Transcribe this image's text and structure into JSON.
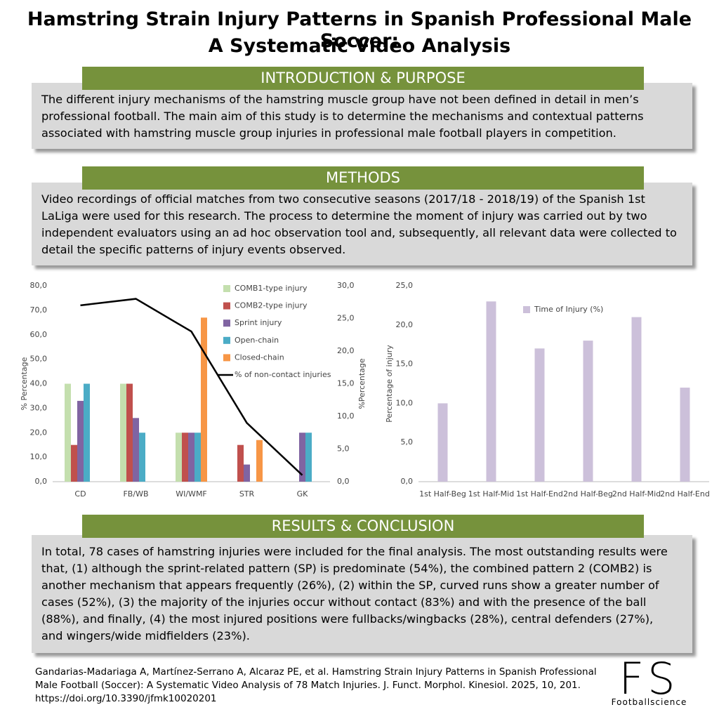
{
  "title": [
    "Hamstring Strain Injury Patterns in Spanish Professional Male Soccer:",
    "A Systematic Video Analysis"
  ],
  "sections": [
    {
      "heading": "INTRODUCTION & PURPOSE",
      "text": "The different injury mechanisms of the hamstring muscle group have not been defined in detail in men’s professional football. The main aim of this study is to determine the mechanisms and contextual patterns associated with hamstring muscle group injuries in professional male football players in competition."
    },
    {
      "heading": "METHODS",
      "text": "Video recordings of official matches from two consecutive seasons (2017/18 - 2018/19) of the Spanish 1st LaLiga were used for this research. The process to determine the moment of injury was carried out by two independent evaluators using an ad hoc observation tool and, subsequently, all relevant data were collected to detail the specific patterns of injury events observed."
    },
    {
      "heading": "RESULTS & CONCLUSION",
      "text": "In total, 78 cases of hamstring injuries were included for the final analysis. The most outstanding results  were that, (1) although the sprint-related pattern (SP) is predominate (54%), the combined pattern 2 (COMB2) is another mechanism that appears frequently (26%), (2) within the SP, curved runs show a greater number of cases (52%), (3) the majority of the injuries occur without contact (83%) and with the presence of the ball (88%), and finally, (4) the most injured positions were fullbacks/wingbacks (28%), central defenders (27%), and wingers/wide midfielders (23%)."
    }
  ],
  "chart_data": [
    {
      "type": "bar",
      "categories": [
        "CD",
        "FB/WB",
        "WI/WMF",
        "STR",
        "GK"
      ],
      "y_label": "% Percentage",
      "y2_label": "%Percentage",
      "grid": false,
      "ylim": [
        0,
        80
      ],
      "yticks": [
        {
          "value": 0,
          "label": "0,0"
        },
        {
          "value": 10,
          "label": "10,0"
        },
        {
          "value": 20,
          "label": "20,0"
        },
        {
          "value": 30,
          "label": "30,0"
        },
        {
          "value": 40,
          "label": "40,0"
        },
        {
          "value": 50,
          "label": "50,0"
        },
        {
          "value": 60,
          "label": "60,0"
        },
        {
          "value": 70,
          "label": "70,0"
        },
        {
          "value": 80,
          "label": "80,0"
        }
      ],
      "y2lim": [
        0,
        30
      ],
      "y2ticks": [
        {
          "value": 0,
          "label": "0,0"
        },
        {
          "value": 5,
          "label": "5,0"
        },
        {
          "value": 10,
          "label": "10,0"
        },
        {
          "value": 15,
          "label": "15,0"
        },
        {
          "value": 20,
          "label": "20,0"
        },
        {
          "value": 25,
          "label": "25,0"
        },
        {
          "value": 30,
          "label": "30,0"
        }
      ],
      "series": [
        {
          "name": "COMB1-type injury",
          "color": "#c4dfae",
          "values": [
            40,
            40,
            20,
            0,
            0
          ]
        },
        {
          "name": "COMB2-type injury",
          "color": "#c0504d",
          "values": [
            15,
            40,
            20,
            15,
            0
          ]
        },
        {
          "name": "Sprint injury",
          "color": "#8064a2",
          "values": [
            33,
            26,
            20,
            7,
            20
          ]
        },
        {
          "name": "Open-chain",
          "color": "#4bacc6",
          "values": [
            40,
            20,
            20,
            0,
            20
          ]
        },
        {
          "name": "Closed-chain",
          "color": "#f79646",
          "values": [
            0,
            0,
            67,
            17,
            0
          ]
        },
        {
          "name": "% of non-contact injuries",
          "color": "#000000",
          "type": "line",
          "axis": "y2",
          "values": [
            27,
            28,
            23,
            9,
            1
          ]
        }
      ]
    },
    {
      "type": "bar",
      "categories": [
        "1st Half-Beg",
        "1st Half-Mid",
        "1st Half-End",
        "2nd Half-Beg",
        "2nd Half-Mid",
        "2nd Half-End"
      ],
      "y_label": "Percentage of injury",
      "grid": false,
      "ylim": [
        0,
        25
      ],
      "yticks": [
        {
          "value": 0,
          "label": "0,0"
        },
        {
          "value": 5,
          "label": "5,0"
        },
        {
          "value": 10,
          "label": "10,0"
        },
        {
          "value": 15,
          "label": "15,0"
        },
        {
          "value": 20,
          "label": "20,0"
        },
        {
          "value": 25,
          "label": "25,0"
        }
      ],
      "series": [
        {
          "name": "Time of Injury (%)",
          "color": "#ccc0da",
          "values": [
            10,
            23,
            17,
            18,
            21,
            12
          ]
        }
      ]
    }
  ],
  "citation": "Gandarias-Madariaga A, Martínez-Serrano A, Alcaraz PE, et al. Hamstring Strain Injury Patterns in Spanish Professional Male Football (Soccer): A Systematic Video Analysis of 78 Match Injuries. J. Funct. Morphol. Kinesiol. 2025, 10, 201. https://doi.org/10.3390/jfmk10020201",
  "logo": {
    "mark": "FS",
    "text": "Footballscience"
  }
}
